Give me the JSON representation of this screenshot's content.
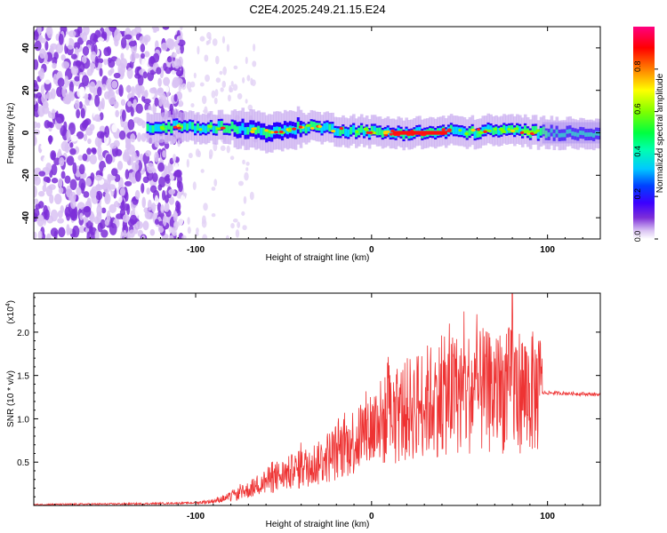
{
  "title": "C2E4.2025.249.21.15.E24",
  "chart_data": [
    {
      "type": "heatmap",
      "name": "spectrogram",
      "xlabel": "Height of straight line (km)",
      "ylabel": "Frequency (Hz)",
      "xlim": [
        -192,
        130
      ],
      "ylim": [
        -50,
        50
      ],
      "x_ticks": [
        -100,
        0,
        100
      ],
      "x_tick_labels": [
        "-100",
        "0",
        "100"
      ],
      "y_ticks": [
        40,
        20,
        0,
        -20,
        -40
      ],
      "y_tick_labels": [
        "40",
        "20",
        "0",
        "-20",
        "-40"
      ],
      "colorbar": {
        "label": "Normalized spectral amplitude",
        "range": [
          0,
          1
        ],
        "ticks": [
          0.0,
          0.2,
          0.4,
          0.6,
          0.8
        ],
        "tick_labels": [
          "0.0",
          "0.2",
          "0.4",
          "0.6",
          "0.8"
        ],
        "colors": [
          "#ffffff",
          "#d9c2f3",
          "#7d2fd8",
          "#3b00ff",
          "#0040ff",
          "#00c8ff",
          "#00ff80",
          "#80ff00",
          "#ffff00",
          "#ff8000",
          "#ff0000",
          "#ff0080"
        ]
      },
      "noise_region_x": [
        -192,
        -115
      ],
      "signal_center_hz": [
        [
          -125,
          2
        ],
        [
          -110,
          3
        ],
        [
          -95,
          2
        ],
        [
          -85,
          3
        ],
        [
          -75,
          2
        ],
        [
          -65,
          1
        ],
        [
          -55,
          0
        ],
        [
          -45,
          2
        ],
        [
          -35,
          3
        ],
        [
          -25,
          2
        ],
        [
          -15,
          1
        ],
        [
          -5,
          1
        ],
        [
          5,
          0
        ],
        [
          15,
          0
        ],
        [
          25,
          0
        ],
        [
          35,
          0
        ],
        [
          45,
          1
        ],
        [
          55,
          0
        ],
        [
          65,
          1
        ],
        [
          75,
          1
        ],
        [
          85,
          1
        ],
        [
          95,
          0
        ],
        [
          105,
          0
        ],
        [
          130,
          0
        ]
      ]
    },
    {
      "type": "line",
      "name": "snr",
      "xlabel": "Height of straight line (km)",
      "ylabel": "SNR (10 * v/v)",
      "scale_label": "(x10",
      "scale_exp": "4",
      "scale_close": ")",
      "xlim": [
        -192,
        130
      ],
      "ylim": [
        0,
        2.45
      ],
      "x_ticks": [
        -100,
        0,
        100
      ],
      "x_tick_labels": [
        "-100",
        "0",
        "100"
      ],
      "y_ticks": [
        0.5,
        1.0,
        1.5,
        2.0
      ],
      "y_tick_labels": [
        "0.5",
        "1.0",
        "1.5",
        "2.0"
      ],
      "color": "#ee3333",
      "envelope": [
        [
          -192,
          0.01
        ],
        [
          -130,
          0.02
        ],
        [
          -100,
          0.03
        ],
        [
          -90,
          0.05
        ],
        [
          -80,
          0.1
        ],
        [
          -70,
          0.18
        ],
        [
          -60,
          0.28
        ],
        [
          -50,
          0.35
        ],
        [
          -40,
          0.42
        ],
        [
          -30,
          0.5
        ],
        [
          -20,
          0.62
        ],
        [
          -10,
          0.75
        ],
        [
          0,
          0.9
        ],
        [
          10,
          1.0
        ],
        [
          20,
          1.1
        ],
        [
          30,
          1.2
        ],
        [
          40,
          1.25
        ],
        [
          50,
          1.3
        ],
        [
          60,
          1.3
        ],
        [
          70,
          1.3
        ],
        [
          80,
          1.35
        ],
        [
          90,
          1.3
        ],
        [
          97,
          1.3
        ],
        [
          100,
          1.3
        ],
        [
          130,
          1.28
        ]
      ],
      "peak": [
        80,
        2.45
      ]
    }
  ]
}
